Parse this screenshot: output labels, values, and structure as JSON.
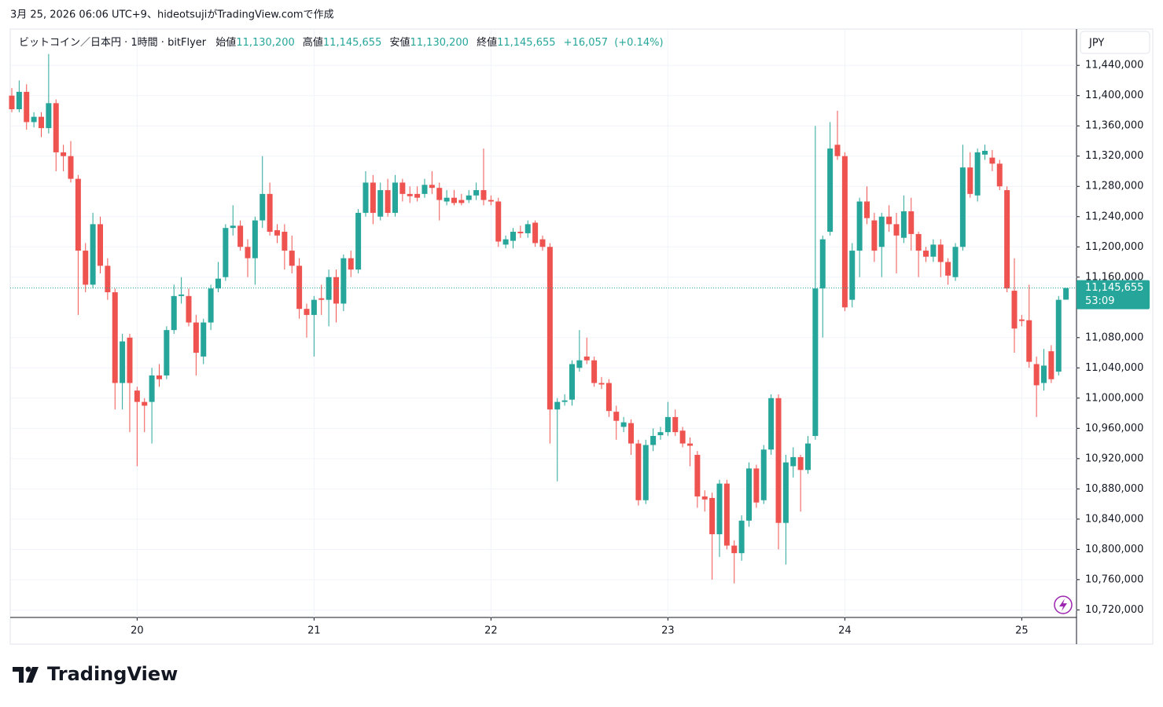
{
  "header": {
    "caption": "3月 25, 2026 06:06 UTC+9、hideotsujiがTradingView.comで作成"
  },
  "chart_data": {
    "type": "candlestick",
    "legend": {
      "symbol": "ビットコイン／日本円 · 1時間 · bitFlyer",
      "open_label": "始値",
      "open": {
        "value": 11130200,
        "label": "11,130,200"
      },
      "high_label": "高値",
      "high": {
        "value": 11145655,
        "label": "11,145,655"
      },
      "low_label": "安値",
      "low": {
        "value": 11130200,
        "label": "11,130,200"
      },
      "close_label": "終値",
      "close": {
        "value": 11145655,
        "label": "11,145,655"
      },
      "change": {
        "value": 16057,
        "label": "+16,057"
      },
      "change_percent": {
        "value": 0.14,
        "label": "(+0.14%)"
      }
    },
    "currency": "JPY",
    "up_color": "#26a69a",
    "down_color": "#ef5350",
    "grid": true,
    "ylim": [
      10710000,
      11488000
    ],
    "yticks": [
      {
        "value": 10720000,
        "label": "10,720,000"
      },
      {
        "value": 10760000,
        "label": "10,760,000"
      },
      {
        "value": 10800000,
        "label": "10,800,000"
      },
      {
        "value": 10840000,
        "label": "10,840,000"
      },
      {
        "value": 10880000,
        "label": "10,880,000"
      },
      {
        "value": 10920000,
        "label": "10,920,000"
      },
      {
        "value": 10960000,
        "label": "10,960,000"
      },
      {
        "value": 11000000,
        "label": "11,000,000"
      },
      {
        "value": 11040000,
        "label": "11,040,000"
      },
      {
        "value": 11080000,
        "label": "11,080,000"
      },
      {
        "value": 11160000,
        "label": "11,160,000"
      },
      {
        "value": 11200000,
        "label": "11,200,000"
      },
      {
        "value": 11240000,
        "label": "11,240,000"
      },
      {
        "value": 11280000,
        "label": "11,280,000"
      },
      {
        "value": 11320000,
        "label": "11,320,000"
      },
      {
        "value": 11360000,
        "label": "11,360,000"
      },
      {
        "value": 11400000,
        "label": "11,400,000"
      },
      {
        "value": 11440000,
        "label": "11,440,000"
      }
    ],
    "categories": [
      null,
      null,
      null,
      null,
      null,
      null,
      null,
      null,
      null,
      null,
      null,
      null,
      null,
      null,
      null,
      null,
      null,
      "20",
      null,
      null,
      null,
      null,
      null,
      null,
      null,
      null,
      null,
      null,
      null,
      null,
      null,
      null,
      null,
      null,
      null,
      null,
      null,
      null,
      null,
      null,
      null,
      "21",
      null,
      null,
      null,
      null,
      null,
      null,
      null,
      null,
      null,
      null,
      null,
      null,
      null,
      null,
      null,
      null,
      null,
      null,
      null,
      null,
      null,
      null,
      null,
      "22",
      null,
      null,
      null,
      null,
      null,
      null,
      null,
      null,
      null,
      null,
      null,
      null,
      null,
      null,
      null,
      null,
      null,
      null,
      null,
      null,
      null,
      null,
      null,
      "23",
      null,
      null,
      null,
      null,
      null,
      null,
      null,
      null,
      null,
      null,
      null,
      null,
      null,
      null,
      null,
      null,
      null,
      null,
      null,
      null,
      null,
      null,
      null,
      "24",
      null,
      null,
      null,
      null,
      null,
      null,
      null,
      null,
      null,
      null,
      null,
      null,
      null,
      null,
      null,
      null,
      null,
      null,
      null,
      null,
      null,
      null,
      null,
      "25",
      null,
      null,
      null,
      null,
      null,
      null
    ],
    "candles": [
      [
        11400000,
        11410000,
        11378000,
        11382000
      ],
      [
        11382000,
        11420000,
        11378000,
        11405000
      ],
      [
        11405000,
        11415000,
        11355000,
        11365000
      ],
      [
        11365000,
        11378000,
        11358000,
        11372000
      ],
      [
        11372000,
        11378000,
        11345000,
        11357000
      ],
      [
        11357000,
        11455000,
        11350000,
        11390000
      ],
      [
        11390000,
        11395000,
        11300000,
        11325000
      ],
      [
        11325000,
        11335000,
        11300000,
        11320000
      ],
      [
        11320000,
        11340000,
        11285000,
        11290000
      ],
      [
        11290000,
        11295000,
        11110000,
        11195000
      ],
      [
        11195000,
        11205000,
        11140000,
        11150000
      ],
      [
        11150000,
        11245000,
        11145000,
        11230000
      ],
      [
        11230000,
        11240000,
        11165000,
        11175000
      ],
      [
        11175000,
        11185000,
        11130000,
        11140000
      ],
      [
        11140000,
        11145000,
        10985000,
        11020000
      ],
      [
        11020000,
        11085000,
        10985000,
        11075000
      ],
      [
        11080000,
        11085000,
        10955000,
        11020000
      ],
      [
        11010000,
        11015000,
        10910000,
        10995000
      ],
      [
        10995000,
        11000000,
        10955000,
        10990000
      ],
      [
        10995000,
        11040000,
        10940000,
        11030000
      ],
      [
        11030000,
        11045000,
        11015000,
        11025000
      ],
      [
        11030000,
        11095000,
        11025000,
        11090000
      ],
      [
        11090000,
        11150000,
        11085000,
        11135000
      ],
      [
        11135000,
        11160000,
        11125000,
        11137000
      ],
      [
        11135000,
        11145000,
        11095000,
        11100000
      ],
      [
        11100000,
        11110000,
        11030000,
        11060000
      ],
      [
        11055000,
        11105000,
        11045000,
        11100000
      ],
      [
        11100000,
        11150000,
        11090000,
        11145000
      ],
      [
        11145000,
        11180000,
        11140000,
        11158000
      ],
      [
        11160000,
        11230000,
        11155000,
        11225000
      ],
      [
        11225000,
        11255000,
        11215000,
        11228000
      ],
      [
        11228000,
        11235000,
        11195000,
        11200000
      ],
      [
        11200000,
        11210000,
        11160000,
        11185000
      ],
      [
        11185000,
        11240000,
        11150000,
        11235000
      ],
      [
        11235000,
        11320000,
        11225000,
        11270000
      ],
      [
        11270000,
        11285000,
        11215000,
        11220000
      ],
      [
        11222000,
        11230000,
        11205000,
        11215000
      ],
      [
        11220000,
        11230000,
        11170000,
        11195000
      ],
      [
        11195000,
        11215000,
        11165000,
        11175000
      ],
      [
        11175000,
        11185000,
        11105000,
        11118000
      ],
      [
        11118000,
        11125000,
        11080000,
        11110000
      ],
      [
        11110000,
        11135000,
        11055000,
        11130000
      ],
      [
        11132000,
        11150000,
        11110000,
        11130000
      ],
      [
        11130000,
        11170000,
        11095000,
        11160000
      ],
      [
        11160000,
        11170000,
        11100000,
        11125000
      ],
      [
        11125000,
        11190000,
        11115000,
        11185000
      ],
      [
        11185000,
        11195000,
        11160000,
        11170000
      ],
      [
        11170000,
        11250000,
        11165000,
        11245000
      ],
      [
        11245000,
        11300000,
        11240000,
        11285000
      ],
      [
        11285000,
        11295000,
        11230000,
        11245000
      ],
      [
        11240000,
        11285000,
        11235000,
        11275000
      ],
      [
        11275000,
        11290000,
        11240000,
        11245000
      ],
      [
        11245000,
        11295000,
        11240000,
        11285000
      ],
      [
        11285000,
        11290000,
        11260000,
        11270000
      ],
      [
        11270000,
        11280000,
        11258000,
        11267000
      ],
      [
        11270000,
        11280000,
        11260000,
        11265000
      ],
      [
        11270000,
        11290000,
        11265000,
        11282000
      ],
      [
        11282000,
        11300000,
        11270000,
        11278000
      ],
      [
        11278000,
        11285000,
        11235000,
        11262000
      ],
      [
        11260000,
        11275000,
        11255000,
        11265000
      ],
      [
        11265000,
        11275000,
        11255000,
        11258000
      ],
      [
        11262000,
        11270000,
        11255000,
        11258000
      ],
      [
        11262000,
        11275000,
        11258000,
        11268000
      ],
      [
        11268000,
        11285000,
        11262000,
        11275000
      ],
      [
        11275000,
        11330000,
        11255000,
        11262000
      ],
      [
        11262000,
        11268000,
        11255000,
        11260000
      ],
      [
        11260000,
        11265000,
        11200000,
        11207000
      ],
      [
        11203000,
        11215000,
        11198000,
        11210000
      ],
      [
        11208000,
        11225000,
        11198000,
        11220000
      ],
      [
        11220000,
        11228000,
        11212000,
        11218000
      ],
      [
        11218000,
        11235000,
        11212000,
        11230000
      ],
      [
        11232000,
        11235000,
        11200000,
        11205000
      ],
      [
        11210000,
        11215000,
        11195000,
        11200000
      ],
      [
        11200000,
        11205000,
        10940000,
        10985000
      ],
      [
        10985000,
        11000000,
        10890000,
        10995000
      ],
      [
        10995000,
        11005000,
        10990000,
        10997000
      ],
      [
        10998000,
        11050000,
        10990000,
        11045000
      ],
      [
        11040000,
        11090000,
        11035000,
        11050000
      ],
      [
        11055000,
        11080000,
        11045000,
        11050000
      ],
      [
        11050000,
        11055000,
        11015000,
        11020000
      ],
      [
        11020000,
        11028000,
        11012000,
        11018000
      ],
      [
        11020000,
        11025000,
        10975000,
        10983000
      ],
      [
        10982000,
        10990000,
        10945000,
        10970000
      ],
      [
        10962000,
        10975000,
        10955000,
        10968000
      ],
      [
        10967000,
        10972000,
        10925000,
        10940000
      ],
      [
        10940000,
        10945000,
        10858000,
        10865000
      ],
      [
        10865000,
        10945000,
        10860000,
        10938000
      ],
      [
        10938000,
        10960000,
        10930000,
        10950000
      ],
      [
        10951000,
        10962000,
        10945000,
        10955000
      ],
      [
        10955000,
        10995000,
        10950000,
        10975000
      ],
      [
        10975000,
        10985000,
        10950000,
        10955000
      ],
      [
        10957000,
        10962000,
        10935000,
        10940000
      ],
      [
        10940000,
        10948000,
        10910000,
        10937000
      ],
      [
        10925000,
        10930000,
        10855000,
        10870000
      ],
      [
        10870000,
        10878000,
        10850000,
        10866000
      ],
      [
        10868000,
        10875000,
        10760000,
        10820000
      ],
      [
        10820000,
        10892000,
        10790000,
        10887000
      ],
      [
        10887000,
        10892000,
        10800000,
        10805000
      ],
      [
        10805000,
        10812000,
        10755000,
        10795000
      ],
      [
        10795000,
        10845000,
        10785000,
        10838000
      ],
      [
        10838000,
        10915000,
        10830000,
        10907000
      ],
      [
        10907000,
        10912000,
        10855000,
        10862000
      ],
      [
        10865000,
        10938000,
        10860000,
        10932000
      ],
      [
        10932000,
        11005000,
        10925000,
        11000000
      ],
      [
        11000000,
        11005000,
        10800000,
        10835000
      ],
      [
        10835000,
        10925000,
        10780000,
        10915000
      ],
      [
        10910000,
        10935000,
        10895000,
        10922000
      ],
      [
        10922000,
        10925000,
        10850000,
        10905000
      ],
      [
        10905000,
        10950000,
        10900000,
        10940000
      ],
      [
        10950000,
        11360000,
        10945000,
        11145000
      ],
      [
        11145000,
        11215000,
        11080000,
        11210000
      ],
      [
        11220000,
        11365000,
        11215000,
        11330000
      ],
      [
        11335000,
        11380000,
        11315000,
        11320000
      ],
      [
        11320000,
        11325000,
        11115000,
        11120000
      ],
      [
        11130000,
        11205000,
        11120000,
        11195000
      ],
      [
        11195000,
        11265000,
        11160000,
        11260000
      ],
      [
        11260000,
        11280000,
        11230000,
        11238000
      ],
      [
        11235000,
        11245000,
        11180000,
        11195000
      ],
      [
        11200000,
        11245000,
        11160000,
        11240000
      ],
      [
        11240000,
        11255000,
        11220000,
        11230000
      ],
      [
        11230000,
        11245000,
        11165000,
        11215000
      ],
      [
        11212000,
        11268000,
        11205000,
        11247000
      ],
      [
        11247000,
        11265000,
        11195000,
        11217000
      ],
      [
        11217000,
        11220000,
        11160000,
        11195000
      ],
      [
        11195000,
        11200000,
        11180000,
        11187000
      ],
      [
        11187000,
        11210000,
        11180000,
        11203000
      ],
      [
        11203000,
        11210000,
        11160000,
        11180000
      ],
      [
        11180000,
        11185000,
        11150000,
        11162000
      ],
      [
        11160000,
        11205000,
        11155000,
        11200000
      ],
      [
        11200000,
        11335000,
        11195000,
        11305000
      ],
      [
        11305000,
        11325000,
        11265000,
        11270000
      ],
      [
        11268000,
        11330000,
        11260000,
        11325000
      ],
      [
        11322000,
        11335000,
        11315000,
        11327000
      ],
      [
        11318000,
        11328000,
        11300000,
        11310000
      ],
      [
        11310000,
        11315000,
        11275000,
        11280000
      ],
      [
        11275000,
        11280000,
        11140000,
        11145000
      ],
      [
        11142000,
        11185000,
        11060000,
        11092000
      ],
      [
        11104000,
        11110000,
        11095000,
        11102000
      ],
      [
        11103000,
        11150000,
        11040000,
        11048000
      ],
      [
        11045000,
        11055000,
        10975000,
        11017000
      ],
      [
        11020000,
        11065000,
        11010000,
        11043000
      ],
      [
        11062000,
        11070000,
        11020000,
        11025000
      ],
      [
        11035000,
        11135000,
        11030000,
        11130000
      ],
      [
        11130200,
        11145655,
        11130200,
        11145655
      ]
    ],
    "last_price": {
      "value": 11145655,
      "label": "11,145,655"
    },
    "countdown": "53:09"
  },
  "footer": {
    "logo": "TradingView"
  }
}
